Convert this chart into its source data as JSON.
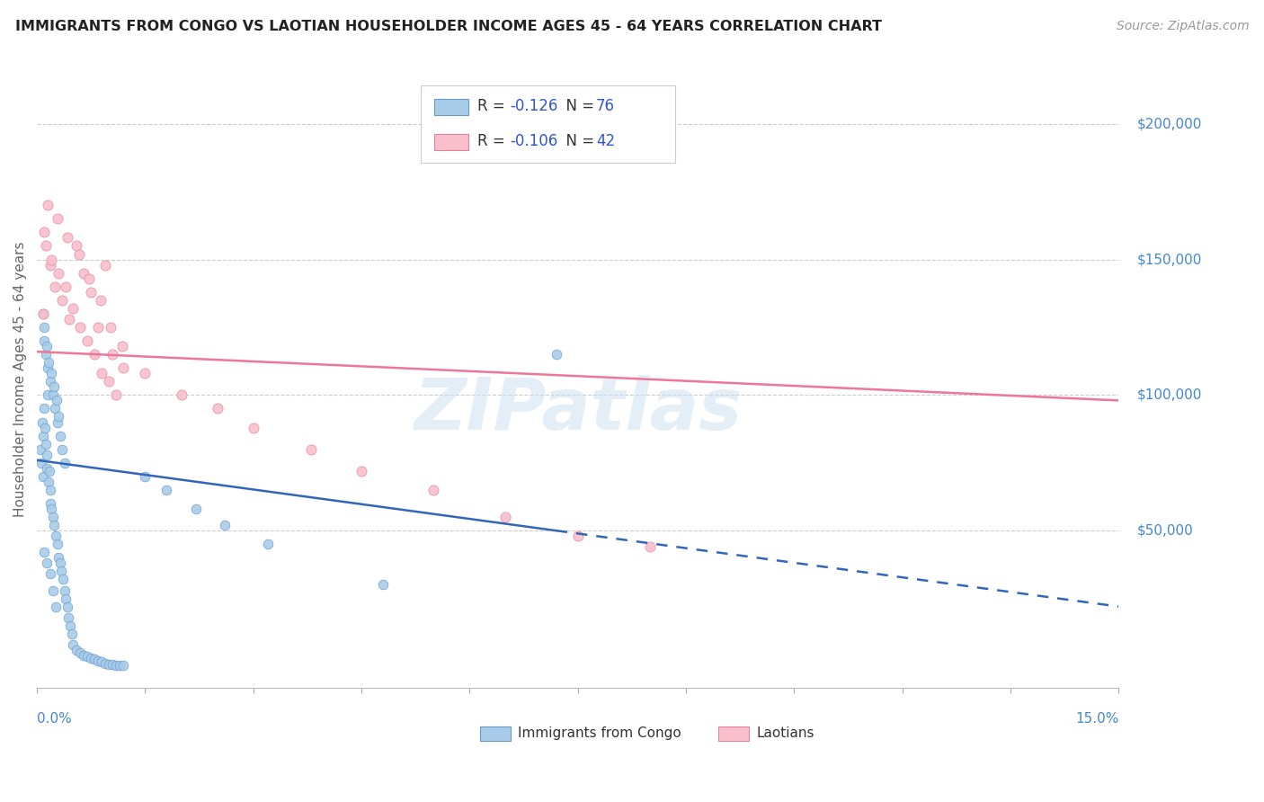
{
  "title": "IMMIGRANTS FROM CONGO VS LAOTIAN HOUSEHOLDER INCOME AGES 45 - 64 YEARS CORRELATION CHART",
  "source": "Source: ZipAtlas.com",
  "ylabel": "Householder Income Ages 45 - 64 years",
  "xlim": [
    0.0,
    15.0
  ],
  "ylim": [
    -8000,
    220000
  ],
  "watermark": "ZIPatlas",
  "bg_color": "#ffffff",
  "grid_color": "#cccccc",
  "tick_color": "#4488cc",
  "title_color": "#222222",
  "source_color": "#999999",
  "congo_color": "#a8cce8",
  "congo_edge": "#6699cc",
  "laotian_color": "#f9bfcc",
  "laotian_edge": "#e8809a",
  "congo_line_color": "#3366bb",
  "laotian_line_color": "#ee7799",
  "congo_line_x0": 0.0,
  "congo_line_y0": 76000,
  "congo_line_x1": 7.2,
  "congo_line_y1": 50000,
  "congo_dash_x0": 7.2,
  "congo_dash_y0": 50000,
  "congo_dash_x1": 15.0,
  "congo_dash_y1": 22000,
  "laotian_line_x0": 0.0,
  "laotian_line_y0": 116000,
  "laotian_line_x1": 15.0,
  "laotian_line_y1": 98000,
  "congo_x": [
    0.05,
    0.06,
    0.07,
    0.08,
    0.09,
    0.1,
    0.11,
    0.12,
    0.13,
    0.14,
    0.15,
    0.16,
    0.17,
    0.18,
    0.19,
    0.2,
    0.22,
    0.24,
    0.26,
    0.28,
    0.3,
    0.32,
    0.34,
    0.36,
    0.38,
    0.4,
    0.42,
    0.44,
    0.46,
    0.48,
    0.5,
    0.55,
    0.6,
    0.65,
    0.7,
    0.75,
    0.8,
    0.85,
    0.9,
    0.95,
    1.0,
    1.05,
    1.1,
    1.15,
    1.2,
    0.1,
    0.12,
    0.15,
    0.18,
    0.22,
    0.25,
    0.28,
    0.32,
    0.35,
    0.38,
    0.08,
    0.1,
    0.13,
    0.16,
    0.2,
    0.23,
    0.27,
    0.3,
    1.5,
    1.8,
    2.2,
    2.6,
    3.2,
    4.8,
    7.2,
    0.1,
    0.14,
    0.18,
    0.22,
    0.26
  ],
  "congo_y": [
    80000,
    75000,
    90000,
    85000,
    70000,
    95000,
    88000,
    82000,
    78000,
    73000,
    100000,
    68000,
    72000,
    65000,
    60000,
    58000,
    55000,
    52000,
    48000,
    45000,
    40000,
    38000,
    35000,
    32000,
    28000,
    25000,
    22000,
    18000,
    15000,
    12000,
    8000,
    6000,
    5000,
    4000,
    3500,
    3000,
    2500,
    2000,
    1500,
    1000,
    800,
    600,
    400,
    300,
    200,
    120000,
    115000,
    110000,
    105000,
    100000,
    95000,
    90000,
    85000,
    80000,
    75000,
    130000,
    125000,
    118000,
    112000,
    108000,
    103000,
    98000,
    92000,
    70000,
    65000,
    58000,
    52000,
    45000,
    30000,
    115000,
    42000,
    38000,
    34000,
    28000,
    22000
  ],
  "laotian_x": [
    0.08,
    0.12,
    0.18,
    0.25,
    0.35,
    0.45,
    0.55,
    0.65,
    0.75,
    0.85,
    0.95,
    1.05,
    1.2,
    0.1,
    0.2,
    0.3,
    0.4,
    0.5,
    0.6,
    0.7,
    0.8,
    0.9,
    1.0,
    1.1,
    1.5,
    2.0,
    2.5,
    3.0,
    3.8,
    4.5,
    5.5,
    6.5,
    7.5,
    8.5,
    0.15,
    0.28,
    0.42,
    0.58,
    0.72,
    0.88,
    1.02,
    1.18
  ],
  "laotian_y": [
    130000,
    155000,
    148000,
    140000,
    135000,
    128000,
    155000,
    145000,
    138000,
    125000,
    148000,
    115000,
    110000,
    160000,
    150000,
    145000,
    140000,
    132000,
    125000,
    120000,
    115000,
    108000,
    105000,
    100000,
    108000,
    100000,
    95000,
    88000,
    80000,
    72000,
    65000,
    55000,
    48000,
    44000,
    170000,
    165000,
    158000,
    152000,
    143000,
    135000,
    125000,
    118000
  ]
}
